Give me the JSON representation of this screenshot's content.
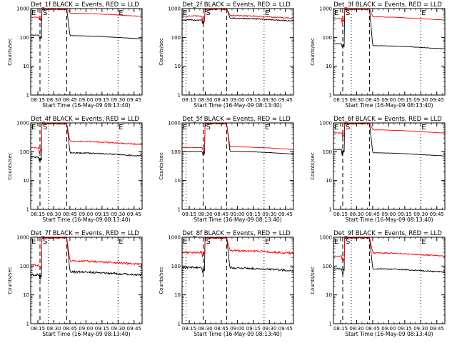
{
  "chart_data": [
    {
      "type": "line",
      "title": "Det_1f BLACK = Events, RED = LLD",
      "xlabel": "Start Time (16-May-09 08:13:40)",
      "ylabel": "Counts/sec",
      "yscale": "log",
      "ylim": [
        1,
        1000
      ],
      "x_ticks": [
        "08:15",
        "08:30",
        "08:45",
        "09:00",
        "09:15",
        "09:30",
        "09:45"
      ],
      "y_ticks": [
        "1",
        "10",
        "100",
        "1000"
      ],
      "flags": [
        "E",
        "S",
        "E"
      ],
      "variant": "A",
      "noise": "low",
      "series": [
        {
          "name": "Events",
          "color": "#000000",
          "level": 100,
          "pre": 120
        },
        {
          "name": "LLD",
          "color": "#ff0000",
          "level": 600,
          "pre": 500
        }
      ]
    },
    {
      "type": "line",
      "title": "Det_2f BLACK = Events, RED = LLD",
      "xlabel": "Start Time (16-May-09 08:13:40)",
      "ylabel": "Counts/sec",
      "yscale": "log",
      "ylim": [
        1,
        1000
      ],
      "x_ticks": [
        "08:15",
        "08:30",
        "08:45",
        "09:00",
        "09:15",
        "09:30",
        "09:45"
      ],
      "y_ticks": [
        "1",
        "10",
        "100",
        "1000"
      ],
      "flags": [
        "E",
        "S",
        "E"
      ],
      "variant": "B",
      "noise": "mid",
      "series": [
        {
          "name": "Events",
          "color": "#000000",
          "level": 400,
          "pre": 400
        },
        {
          "name": "LLD",
          "color": "#ff0000",
          "level": 500,
          "pre": 550
        }
      ]
    },
    {
      "type": "line",
      "title": "Det_3f BLACK = Events, RED = LLD",
      "xlabel": "Start Time (16-May-09 08:13:40)",
      "ylabel": "Counts/sec",
      "yscale": "log",
      "ylim": [
        1,
        1000
      ],
      "x_ticks": [
        "08:15",
        "08:30",
        "08:45",
        "09:00",
        "09:15",
        "09:30",
        "09:45"
      ],
      "y_ticks": [
        "1",
        "10",
        "100",
        "1000"
      ],
      "flags": [
        "E",
        "S",
        "E"
      ],
      "variant": "A",
      "noise": "low",
      "series": [
        {
          "name": "Events",
          "color": "#000000",
          "level": 45,
          "pre": 60
        },
        {
          "name": "LLD",
          "color": "#ff0000",
          "level": 450,
          "pre": 450
        }
      ]
    },
    {
      "type": "line",
      "title": "Det_4f BLACK = Events, RED = LLD",
      "xlabel": "Start Time (16-May-09 08:13:40)",
      "ylabel": "Counts/sec",
      "yscale": "log",
      "ylim": [
        1,
        1000
      ],
      "x_ticks": [
        "08:15",
        "08:30",
        "08:45",
        "09:00",
        "09:15",
        "09:30",
        "09:45"
      ],
      "y_ticks": [
        "1",
        "10",
        "100",
        "1000"
      ],
      "flags": [
        "E",
        "S",
        "E"
      ],
      "variant": "A",
      "noise": "mid",
      "series": [
        {
          "name": "Events",
          "color": "#000000",
          "level": 80,
          "pre": 65
        },
        {
          "name": "LLD",
          "color": "#ff0000",
          "level": 200,
          "pre": 140
        }
      ]
    },
    {
      "type": "line",
      "title": "Det_5f BLACK = Events, RED = LLD",
      "xlabel": "Start Time (16-May-09 08:13:40)",
      "ylabel": "Counts/sec",
      "yscale": "log",
      "ylim": [
        1,
        1000
      ],
      "x_ticks": [
        "08:15",
        "08:30",
        "08:45",
        "09:00",
        "09:15",
        "09:30",
        "09:45"
      ],
      "y_ticks": [
        "1",
        "10",
        "100",
        "1000"
      ],
      "flags": [
        "E",
        "S",
        "E"
      ],
      "variant": "B",
      "noise": "low",
      "series": [
        {
          "name": "Events",
          "color": "#000000",
          "level": 90,
          "pre": 100
        },
        {
          "name": "LLD",
          "color": "#ff0000",
          "level": 130,
          "pre": 140
        }
      ]
    },
    {
      "type": "line",
      "title": "Det_6f BLACK = Events, RED = LLD",
      "xlabel": "Start Time (16-May-09 08:13:40)",
      "ylabel": "Counts/sec",
      "yscale": "log",
      "ylim": [
        1,
        1000
      ],
      "x_ticks": [
        "08:15",
        "08:30",
        "08:45",
        "09:00",
        "09:15",
        "09:30",
        "09:45"
      ],
      "y_ticks": [
        "1",
        "10",
        "100",
        "1000"
      ],
      "flags": [
        "E",
        "S",
        "E"
      ],
      "variant": "A",
      "noise": "low",
      "series": [
        {
          "name": "Events",
          "color": "#000000",
          "level": 80,
          "pre": 120
        },
        {
          "name": "LLD",
          "color": "#ff0000",
          "level": 500,
          "pre": 450
        }
      ]
    },
    {
      "type": "line",
      "title": "Det_7f BLACK = Events, RED = LLD",
      "xlabel": "Start Time (16-May-09 08:13:40)",
      "ylabel": "Counts/sec",
      "yscale": "log",
      "ylim": [
        1,
        1000
      ],
      "x_ticks": [
        "08:15",
        "08:30",
        "08:45",
        "09:00",
        "09:15",
        "09:30",
        "09:45"
      ],
      "y_ticks": [
        "1",
        "10",
        "100",
        "1000"
      ],
      "flags": [
        "E",
        "S",
        "E"
      ],
      "variant": "A",
      "noise": "high",
      "series": [
        {
          "name": "Events",
          "color": "#000000",
          "level": 55,
          "pre": 50
        },
        {
          "name": "LLD",
          "color": "#ff0000",
          "level": 130,
          "pre": 110
        }
      ]
    },
    {
      "type": "line",
      "title": "Det_8f BLACK = Events, RED = LLD",
      "xlabel": "Start Time (16-May-09 08:13:40)",
      "ylabel": "Counts/sec",
      "yscale": "log",
      "ylim": [
        1,
        1000
      ],
      "x_ticks": [
        "08:15",
        "08:30",
        "08:45",
        "09:00",
        "09:15",
        "09:30",
        "09:45"
      ],
      "y_ticks": [
        "1",
        "10",
        "100",
        "1000"
      ],
      "flags": [
        "E",
        "S",
        "E"
      ],
      "variant": "B",
      "noise": "high",
      "series": [
        {
          "name": "Events",
          "color": "#000000",
          "level": 75,
          "pre": 90
        },
        {
          "name": "LLD",
          "color": "#ff0000",
          "level": 300,
          "pre": 300
        }
      ]
    },
    {
      "type": "line",
      "title": "Det_9f BLACK = Events, RED = LLD",
      "xlabel": "Start Time (16-May-09 08:13:40)",
      "ylabel": "Counts/sec",
      "yscale": "log",
      "ylim": [
        1,
        1000
      ],
      "x_ticks": [
        "08:15",
        "08:30",
        "08:45",
        "09:00",
        "09:15",
        "09:30",
        "09:45"
      ],
      "y_ticks": [
        "1",
        "10",
        "100",
        "1000"
      ],
      "flags": [
        "E",
        "S",
        "E"
      ],
      "variant": "A",
      "noise": "mid",
      "series": [
        {
          "name": "Events",
          "color": "#000000",
          "level": 70,
          "pre": 80
        },
        {
          "name": "LLD",
          "color": "#ff0000",
          "level": 250,
          "pre": 220
        }
      ]
    }
  ]
}
